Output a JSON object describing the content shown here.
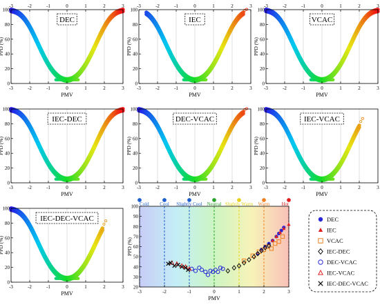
{
  "chart_data": [
    {
      "type": "scatter",
      "panel_label": "DEC",
      "xlabel": "PMV",
      "ylabel": "PPD (%)",
      "xlim": [
        -3,
        3
      ],
      "ylim": [
        0,
        100
      ],
      "xticks": [
        "-3",
        "-2",
        "-1",
        "0",
        "1",
        "2",
        "3"
      ],
      "yticks": [
        "0",
        "20",
        "40",
        "60",
        "80",
        "100"
      ],
      "top_axis": true,
      "pmv_range": [
        -3.0,
        3.0
      ],
      "min_ppd": 5
    },
    {
      "type": "scatter",
      "panel_label": "IEC",
      "xlabel": "PMV",
      "ylabel": "PPD (%)",
      "xlim": [
        -3,
        3
      ],
      "ylim": [
        0,
        100
      ],
      "xticks": [
        "-3",
        "-2",
        "-1",
        "0",
        "1",
        "2",
        "3"
      ],
      "yticks": [
        "0",
        "20",
        "40",
        "60",
        "80",
        "100"
      ],
      "top_axis": true,
      "pmv_range": [
        -2.6,
        2.6
      ],
      "min_ppd": 5
    },
    {
      "type": "scatter",
      "panel_label": "VCAC",
      "xlabel": "PMV",
      "ylabel": "PPD (%)",
      "xlim": [
        -3,
        3
      ],
      "ylim": [
        0,
        100
      ],
      "xticks": [
        "-3",
        "-2",
        "-1",
        "0",
        "1",
        "2",
        "3"
      ],
      "yticks": [
        "0",
        "20",
        "40",
        "60",
        "80",
        "100"
      ],
      "top_axis": true,
      "pmv_range": [
        -3.0,
        3.0
      ],
      "min_ppd": 5
    },
    {
      "type": "scatter",
      "panel_label": "IEC-DEC",
      "xlabel": "PMV",
      "ylabel": "PPD (%)",
      "xlim": [
        -3,
        3
      ],
      "ylim": [
        0,
        100
      ],
      "xticks": [
        "-3",
        "-2",
        "-1",
        "0",
        "1",
        "2",
        "3"
      ],
      "yticks": [
        "0",
        "20",
        "40",
        "60",
        "80",
        "100"
      ],
      "top_axis": false,
      "pmv_range": [
        -3.0,
        3.0
      ],
      "min_ppd": 5
    },
    {
      "type": "scatter",
      "panel_label": "DEC-VCAC",
      "xlabel": "PMV",
      "ylabel": "PPD (%)",
      "xlim": [
        -3,
        3
      ],
      "ylim": [
        0,
        100
      ],
      "xticks": [
        "-3",
        "-2",
        "-1",
        "0",
        "1",
        "2",
        "3"
      ],
      "yticks": [
        "0",
        "20",
        "40",
        "60",
        "80",
        "100"
      ],
      "top_axis": false,
      "pmv_range": [
        -3.0,
        2.6
      ],
      "min_ppd": 5
    },
    {
      "type": "scatter",
      "panel_label": "IEC-VCAC",
      "xlabel": "PMV",
      "ylabel": "PPD (%)",
      "xlim": [
        -3,
        3
      ],
      "ylim": [
        0,
        100
      ],
      "xticks": [
        "-3",
        "-2",
        "-1",
        "0",
        "1",
        "2",
        "3"
      ],
      "yticks": [
        "0",
        "20",
        "40",
        "60",
        "80",
        "100"
      ],
      "top_axis": false,
      "pmv_range": [
        -3.0,
        2.0
      ],
      "min_ppd": 5
    },
    {
      "type": "scatter",
      "panel_label": "IEC-DEC-VCAC",
      "xlabel": "PMV",
      "ylabel": "PPD (%)",
      "xlim": [
        -3,
        3
      ],
      "ylim": [
        0,
        100
      ],
      "xticks": [
        "-3",
        "-2",
        "-1",
        "0",
        "1",
        "2",
        "3"
      ],
      "yticks": [
        "0",
        "20",
        "40",
        "60",
        "80",
        "100"
      ],
      "top_axis": false,
      "pmv_range": [
        -3.0,
        1.9
      ],
      "min_ppd": 5
    },
    {
      "type": "scatter",
      "panel_label": "",
      "xlabel": "PMV",
      "ylabel": "PPD (%)",
      "xlim": [
        -3,
        3
      ],
      "ylim": [
        20,
        100
      ],
      "xticks": [
        "-3",
        "-2",
        "-1",
        "0",
        "1",
        "2",
        "3"
      ],
      "yticks": [
        "20",
        "30",
        "40",
        "50",
        "60",
        "70",
        "80",
        "90",
        "100"
      ],
      "bands": [
        {
          "label": "Cold",
          "x": -3,
          "color": "#1e5fd0"
        },
        {
          "label": "Cool",
          "x": -2,
          "color": "#1e5fd0"
        },
        {
          "label": "Slightly Cool",
          "x": -1,
          "color": "#1e5fd0"
        },
        {
          "label": "Neutral",
          "x": 0,
          "color": "#2aa52a"
        },
        {
          "label": "Slightly Warm",
          "x": 1,
          "color": "#e6d21a"
        },
        {
          "label": "Warm",
          "x": 2,
          "color": "#f08020"
        },
        {
          "label": "Hot",
          "x": 3,
          "color": "#e02020"
        }
      ],
      "series": [
        {
          "name": "DEC",
          "marker": "circle-filled",
          "color": "#2727d8",
          "points": [
            [
              1.75,
              53
            ],
            [
              1.9,
              57
            ],
            [
              2.05,
              60
            ],
            [
              2.2,
              63
            ],
            [
              2.35,
              66
            ],
            [
              2.5,
              70
            ],
            [
              2.6,
              73
            ],
            [
              2.7,
              76
            ],
            [
              2.8,
              79
            ]
          ]
        },
        {
          "name": "IEC",
          "marker": "triangle-filled",
          "color": "#e01f1f",
          "points": [
            [
              2.35,
              66
            ],
            [
              2.5,
              70
            ],
            [
              2.65,
              74
            ],
            [
              2.8,
              78
            ],
            [
              3.0,
              82
            ]
          ]
        },
        {
          "name": "VCAC",
          "marker": "square-open",
          "color": "#f07e1f",
          "points": [
            [
              1.2,
              46
            ],
            [
              1.55,
              51
            ],
            [
              1.8,
              55
            ],
            [
              2.0,
              57
            ],
            [
              2.15,
              60
            ],
            [
              2.3,
              58
            ],
            [
              2.45,
              63
            ],
            [
              2.6,
              65
            ],
            [
              2.75,
              70
            ]
          ]
        },
        {
          "name": "IEC-DEC",
          "marker": "diamond-open",
          "color": "#111111",
          "points": [
            [
              0.55,
              36
            ],
            [
              0.8,
              39
            ],
            [
              1.0,
              41
            ],
            [
              1.2,
              44
            ],
            [
              1.4,
              47
            ],
            [
              1.6,
              50
            ],
            [
              1.75,
              53
            ],
            [
              1.9,
              56
            ],
            [
              2.05,
              59
            ],
            [
              2.2,
              61
            ]
          ]
        },
        {
          "name": "DEC-VCAC",
          "marker": "circle-open",
          "color": "#2727d8",
          "points": [
            [
              -0.9,
              38
            ],
            [
              -0.75,
              36
            ],
            [
              -0.6,
              39
            ],
            [
              -0.5,
              37
            ],
            [
              -0.35,
              35
            ],
            [
              -0.25,
              32
            ],
            [
              -0.15,
              36
            ],
            [
              -0.05,
              35
            ],
            [
              0.05,
              37
            ],
            [
              0.15,
              35
            ],
            [
              0.25,
              39
            ],
            [
              0.35,
              38
            ]
          ]
        },
        {
          "name": "IEC-VCAC",
          "marker": "triangle-open",
          "color": "#e01f1f",
          "points": [
            [
              -1.7,
              44
            ],
            [
              -1.5,
              43
            ],
            [
              -1.3,
              41
            ],
            [
              -1.15,
              40
            ],
            [
              -1.0,
              38
            ]
          ]
        },
        {
          "name": "IEC-DEC-VCAC",
          "marker": "x",
          "color": "#111111",
          "points": [
            [
              -1.85,
              43
            ],
            [
              -1.75,
              44
            ],
            [
              -1.6,
              41
            ],
            [
              -1.45,
              42
            ],
            [
              -1.3,
              40
            ],
            [
              -1.15,
              39
            ],
            [
              -1.05,
              37
            ]
          ]
        }
      ]
    }
  ],
  "legend": {
    "items": [
      {
        "label": "DEC",
        "marker": "circle-filled",
        "color": "#2727d8"
      },
      {
        "label": "IEC",
        "marker": "triangle-filled",
        "color": "#e01f1f"
      },
      {
        "label": "VCAC",
        "marker": "square-open",
        "color": "#f07e1f"
      },
      {
        "label": "IEC-DEC",
        "marker": "diamond-open",
        "color": "#111111"
      },
      {
        "label": "DEC-VCAC",
        "marker": "circle-open",
        "color": "#2727d8"
      },
      {
        "label": "IEC-VCAC",
        "marker": "triangle-open",
        "color": "#e01f1f"
      },
      {
        "label": "IEC-DEC-VCAC",
        "marker": "x",
        "color": "#111111"
      }
    ]
  }
}
